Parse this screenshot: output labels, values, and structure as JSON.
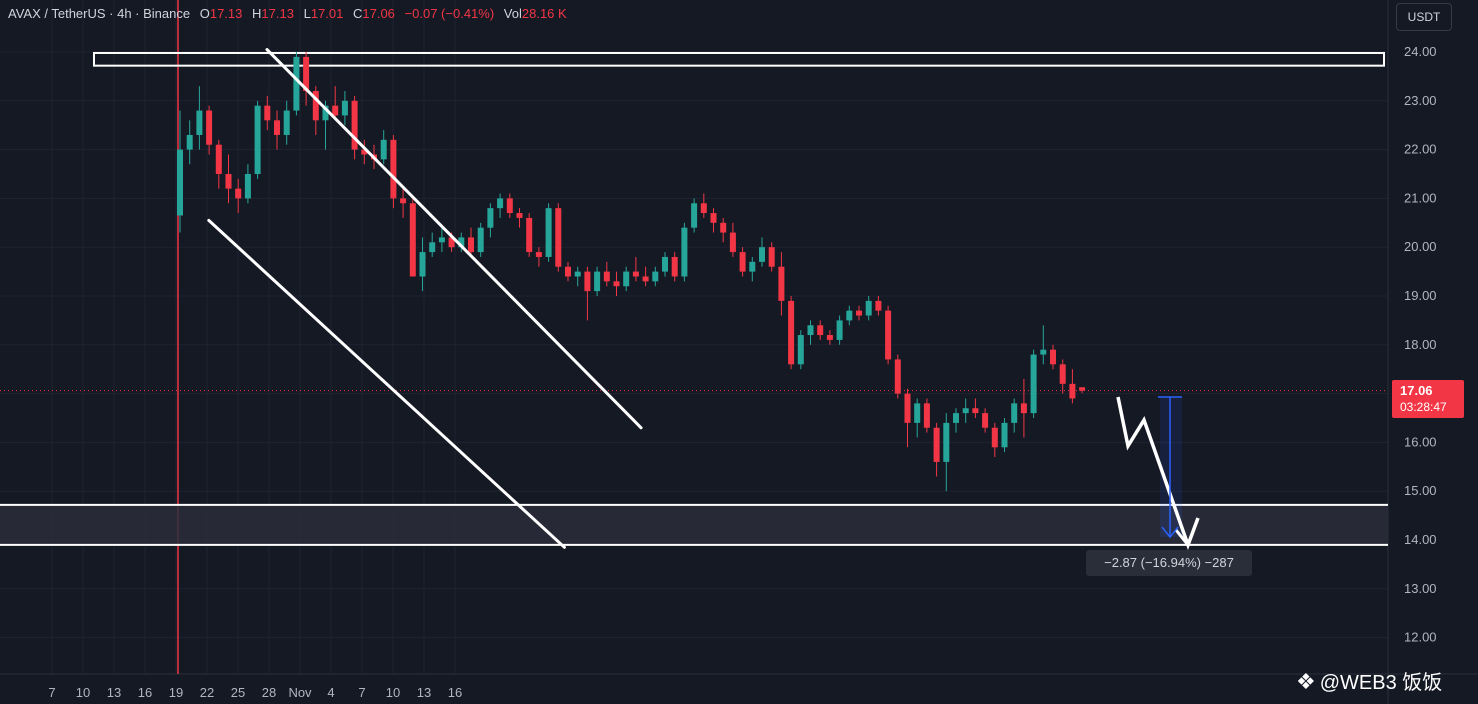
{
  "header": {
    "symbol": "AVAX / TetherUS · 4h · Binance",
    "o_label": "O",
    "o_value": "17.13",
    "h_label": "H",
    "h_value": "17.13",
    "l_label": "L",
    "l_value": "17.01",
    "c_label": "C",
    "c_value": "17.06",
    "change": "−0.07 (−0.41%)",
    "vol_label": "Vol",
    "vol_value": "28.16 K"
  },
  "currency_button": "USDT",
  "price_tag": {
    "price": "17.06",
    "countdown": "03:28:47"
  },
  "measure_label": "−2.87 (−16.94%) −287",
  "watermark": {
    "icon": "binance-diamond-icon",
    "text": "@WEB3 饭饭"
  },
  "colors": {
    "up": "#26a69a",
    "down": "#f23645",
    "background": "#151924",
    "grid": "#1f2330",
    "drawing": "#ffffff",
    "measure": "#2962ff"
  },
  "chart_data": {
    "type": "candlestick",
    "title": "AVAX / TetherUS · 4h · Binance",
    "xlabel": "",
    "ylabel": "",
    "ylim": [
      11.4,
      24.5
    ],
    "y_ticks": [
      "24.00",
      "23.00",
      "22.00",
      "21.00",
      "20.00",
      "19.00",
      "18.00",
      "17.00",
      "16.00",
      "15.00",
      "14.00",
      "13.00",
      "12.00"
    ],
    "y_tick_values": [
      24,
      23,
      22,
      21,
      20,
      19,
      18,
      17,
      16,
      15,
      14,
      13,
      12
    ],
    "x_ticks": [
      "7",
      "10",
      "13",
      "16",
      "19",
      "22",
      "25",
      "28",
      "Nov",
      "4",
      "7",
      "10",
      "13",
      "16"
    ],
    "x_tick_index": [
      0,
      3,
      6,
      9,
      12,
      15,
      18,
      21,
      24,
      27,
      30,
      33,
      36,
      39
    ],
    "last_price": 17.06,
    "candles": [
      [
        20.65,
        22.8,
        20.3,
        22.0
      ],
      [
        22.0,
        22.6,
        21.7,
        22.3
      ],
      [
        22.3,
        23.3,
        22.0,
        22.8
      ],
      [
        22.8,
        22.9,
        21.9,
        22.1
      ],
      [
        22.1,
        22.2,
        21.2,
        21.5
      ],
      [
        21.5,
        21.9,
        20.9,
        21.2
      ],
      [
        21.2,
        21.4,
        20.7,
        21.0
      ],
      [
        21.0,
        21.7,
        20.9,
        21.5
      ],
      [
        21.5,
        23.0,
        21.4,
        22.9
      ],
      [
        22.9,
        23.1,
        22.4,
        22.6
      ],
      [
        22.6,
        22.8,
        22.0,
        22.3
      ],
      [
        22.3,
        23.0,
        22.1,
        22.8
      ],
      [
        22.8,
        24.0,
        22.7,
        23.9
      ],
      [
        23.9,
        24.0,
        22.9,
        23.2
      ],
      [
        23.2,
        23.3,
        22.3,
        22.6
      ],
      [
        22.6,
        23.0,
        22.0,
        22.9
      ],
      [
        22.9,
        23.3,
        22.6,
        22.7
      ],
      [
        22.7,
        23.2,
        22.5,
        23.0
      ],
      [
        23.0,
        23.1,
        21.8,
        22.0
      ],
      [
        22.0,
        22.2,
        21.7,
        21.9
      ],
      [
        21.9,
        22.1,
        21.6,
        21.8
      ],
      [
        21.8,
        22.4,
        21.7,
        22.2
      ],
      [
        22.2,
        22.3,
        20.8,
        21.0
      ],
      [
        21.0,
        21.2,
        20.6,
        20.9
      ],
      [
        20.9,
        21.0,
        19.4,
        19.4
      ],
      [
        19.4,
        20.2,
        19.1,
        19.9
      ],
      [
        19.9,
        20.3,
        19.8,
        20.1
      ],
      [
        20.1,
        20.4,
        19.9,
        20.2
      ],
      [
        20.2,
        20.3,
        19.9,
        20.0
      ],
      [
        20.0,
        20.3,
        19.9,
        20.2
      ],
      [
        20.2,
        20.4,
        19.8,
        19.9
      ],
      [
        19.9,
        20.5,
        19.8,
        20.4
      ],
      [
        20.4,
        20.9,
        20.2,
        20.8
      ],
      [
        20.8,
        21.1,
        20.6,
        21.0
      ],
      [
        21.0,
        21.1,
        20.6,
        20.7
      ],
      [
        20.7,
        20.8,
        20.4,
        20.6
      ],
      [
        20.6,
        20.7,
        19.8,
        19.9
      ],
      [
        19.9,
        20.0,
        19.6,
        19.8
      ],
      [
        19.8,
        20.9,
        19.7,
        20.8
      ],
      [
        20.8,
        20.9,
        19.5,
        19.6
      ],
      [
        19.6,
        19.7,
        19.3,
        19.4
      ],
      [
        19.4,
        19.6,
        19.2,
        19.5
      ],
      [
        19.5,
        19.6,
        18.5,
        19.1
      ],
      [
        19.1,
        19.6,
        19.0,
        19.5
      ],
      [
        19.5,
        19.7,
        19.2,
        19.3
      ],
      [
        19.3,
        19.5,
        19.0,
        19.2
      ],
      [
        19.2,
        19.6,
        19.1,
        19.5
      ],
      [
        19.5,
        19.8,
        19.3,
        19.4
      ],
      [
        19.4,
        19.6,
        19.2,
        19.3
      ],
      [
        19.3,
        19.6,
        19.2,
        19.5
      ],
      [
        19.5,
        19.9,
        19.4,
        19.8
      ],
      [
        19.8,
        19.9,
        19.3,
        19.4
      ],
      [
        19.4,
        20.5,
        19.3,
        20.4
      ],
      [
        20.4,
        21.0,
        20.3,
        20.9
      ],
      [
        20.9,
        21.1,
        20.6,
        20.7
      ],
      [
        20.7,
        20.8,
        20.3,
        20.5
      ],
      [
        20.5,
        20.6,
        20.1,
        20.3
      ],
      [
        20.3,
        20.5,
        19.8,
        19.9
      ],
      [
        19.9,
        20.0,
        19.4,
        19.5
      ],
      [
        19.5,
        19.8,
        19.3,
        19.7
      ],
      [
        19.7,
        20.2,
        19.6,
        20.0
      ],
      [
        20.0,
        20.1,
        19.5,
        19.6
      ],
      [
        19.6,
        19.9,
        18.6,
        18.9
      ],
      [
        18.9,
        19.0,
        17.5,
        17.6
      ],
      [
        17.6,
        18.3,
        17.5,
        18.2
      ],
      [
        18.2,
        18.5,
        18.0,
        18.4
      ],
      [
        18.4,
        18.5,
        18.1,
        18.2
      ],
      [
        18.2,
        18.3,
        18.0,
        18.1
      ],
      [
        18.1,
        18.6,
        18.0,
        18.5
      ],
      [
        18.5,
        18.8,
        18.4,
        18.7
      ],
      [
        18.7,
        18.8,
        18.5,
        18.6
      ],
      [
        18.6,
        19.0,
        18.5,
        18.9
      ],
      [
        18.9,
        19.0,
        18.6,
        18.7
      ],
      [
        18.7,
        18.8,
        17.6,
        17.7
      ],
      [
        17.7,
        17.8,
        16.9,
        17.0
      ],
      [
        17.0,
        17.1,
        15.9,
        16.4
      ],
      [
        16.4,
        16.9,
        16.1,
        16.8
      ],
      [
        16.8,
        16.9,
        16.2,
        16.3
      ],
      [
        16.3,
        16.4,
        15.3,
        15.6
      ],
      [
        15.6,
        16.6,
        15.0,
        16.4
      ],
      [
        16.4,
        16.7,
        16.2,
        16.6
      ],
      [
        16.6,
        16.9,
        16.4,
        16.7
      ],
      [
        16.7,
        16.9,
        16.5,
        16.6
      ],
      [
        16.6,
        16.7,
        16.2,
        16.3
      ],
      [
        16.3,
        16.4,
        15.7,
        15.9
      ],
      [
        15.9,
        16.5,
        15.8,
        16.4
      ],
      [
        16.4,
        16.9,
        16.2,
        16.8
      ],
      [
        16.8,
        17.3,
        16.1,
        16.6
      ],
      [
        16.6,
        17.9,
        16.5,
        17.8
      ],
      [
        17.8,
        18.4,
        17.6,
        17.9
      ],
      [
        17.9,
        18.0,
        17.5,
        17.6
      ],
      [
        17.6,
        17.7,
        17.0,
        17.2
      ],
      [
        17.2,
        17.5,
        16.8,
        16.9
      ],
      [
        17.13,
        17.13,
        17.01,
        17.06
      ]
    ],
    "drawings": {
      "channel_upper": {
        "from": {
          "index": 10,
          "price": 24.05
        },
        "to": {
          "index": 46.5,
          "price": 16.3
        }
      },
      "channel_lower": {
        "from": {
          "index": 4,
          "price": 20.55
        },
        "to": {
          "index": 38.6,
          "price": 13.85
        }
      },
      "resistance_box": [
        23.72,
        23.98
      ],
      "support_zone": [
        13.9,
        14.72
      ],
      "projection": [
        [
          37.65,
          16.95
        ],
        [
          38.1,
          15.95
        ],
        [
          38.8,
          16.5
        ],
        [
          39.6,
          14.0
        ],
        [
          40.2,
          14.45
        ]
      ],
      "measure": {
        "from": 16.93,
        "to": 14.06,
        "change": -2.87,
        "percent": -16.94,
        "ticks": -287
      }
    }
  }
}
